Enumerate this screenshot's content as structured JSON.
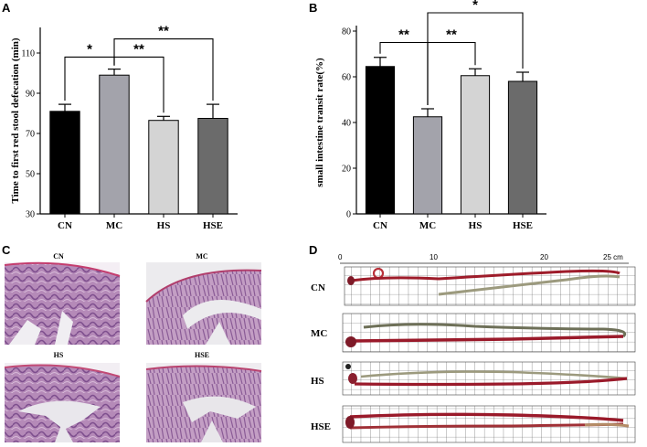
{
  "panels": {
    "a_label": "A",
    "b_label": "B",
    "c_label": "C",
    "d_label": "D"
  },
  "chart_data": [
    {
      "id": "A",
      "type": "bar",
      "title": "",
      "xlabel": "",
      "ylabel": "Time to first red stool defecation (min)",
      "categories": [
        "CN",
        "MC",
        "HS",
        "HSE"
      ],
      "values": [
        81,
        99,
        76.5,
        77.5
      ],
      "errors": [
        3.5,
        3,
        2,
        7
      ],
      "colors": [
        "#000000",
        "#a3a3ab",
        "#d4d4d4",
        "#6b6b6b"
      ],
      "ylim": [
        30,
        120
      ],
      "yticks": [
        30,
        50,
        70,
        90,
        110
      ],
      "significance": [
        {
          "from": 0,
          "to": 1,
          "label": "*",
          "level": 108
        },
        {
          "from": 1,
          "to": 2,
          "label": "**",
          "level": 108
        },
        {
          "from": 1,
          "to": 3,
          "label": "**",
          "level": 117
        }
      ]
    },
    {
      "id": "B",
      "type": "bar",
      "title": "",
      "xlabel": "",
      "ylabel": "small intestine transit rate(%)",
      "categories": [
        "CN",
        "MC",
        "HS",
        "HSE"
      ],
      "values": [
        64.5,
        42.5,
        60.5,
        58
      ],
      "errors": [
        4,
        3.5,
        3,
        4
      ],
      "colors": [
        "#000000",
        "#a3a3ab",
        "#d4d4d4",
        "#6b6b6b"
      ],
      "ylim": [
        0,
        80
      ],
      "yticks": [
        0,
        20,
        40,
        60,
        80
      ],
      "significance": [
        {
          "from": 0,
          "to": 1,
          "label": "**",
          "level": 75
        },
        {
          "from": 1,
          "to": 2,
          "label": "**",
          "level": 75
        },
        {
          "from": 1,
          "to": 3,
          "label": "*",
          "level": 88
        }
      ]
    }
  ],
  "histology": {
    "images": [
      {
        "label": "CN"
      },
      {
        "label": "MC"
      },
      {
        "label": "HS"
      },
      {
        "label": "HSE"
      }
    ]
  },
  "intestine": {
    "ruler_ticks": [
      "0",
      "10",
      "20",
      "25 cm"
    ],
    "rows": [
      {
        "label": "CN"
      },
      {
        "label": "MC"
      },
      {
        "label": "HS"
      },
      {
        "label": "HSE"
      }
    ]
  }
}
